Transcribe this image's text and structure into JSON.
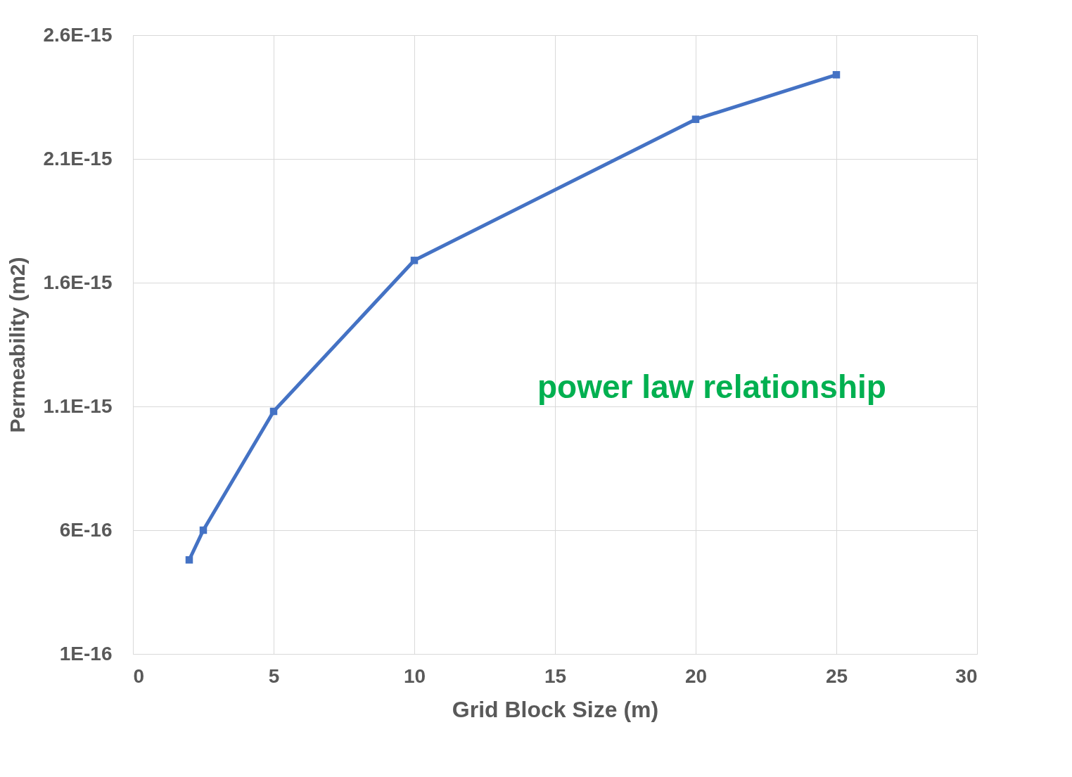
{
  "chart_data": {
    "type": "line",
    "xlabel": "Grid Block Size (m)",
    "ylabel": "Permeability (m2)",
    "x": [
      2,
      2.5,
      5,
      10,
      20,
      25
    ],
    "series": [
      {
        "color": "#4472c4",
        "values": [
          4.8e-16,
          6e-16,
          1.08e-15,
          1.69e-15,
          2.26e-15,
          2.44e-15
        ]
      }
    ],
    "xlim": [
      0,
      30
    ],
    "xticks": [
      0,
      5,
      10,
      15,
      20,
      25,
      30
    ],
    "ylim": [
      1e-16,
      2.6e-15
    ],
    "yticks": [
      {
        "value": 1e-16,
        "label": "1E-16"
      },
      {
        "value": 6e-16,
        "label": "6E-16"
      },
      {
        "value": 1.1e-15,
        "label": "1.1E-15"
      },
      {
        "value": 1.6e-15,
        "label": "1.6E-15"
      },
      {
        "value": 2.1e-15,
        "label": "2.1E-15"
      },
      {
        "value": 2.6e-15,
        "label": "2.6E-15"
      }
    ],
    "grid": true,
    "marker": "square",
    "line_style": "solid",
    "annotations": [
      "power law relationship"
    ]
  }
}
